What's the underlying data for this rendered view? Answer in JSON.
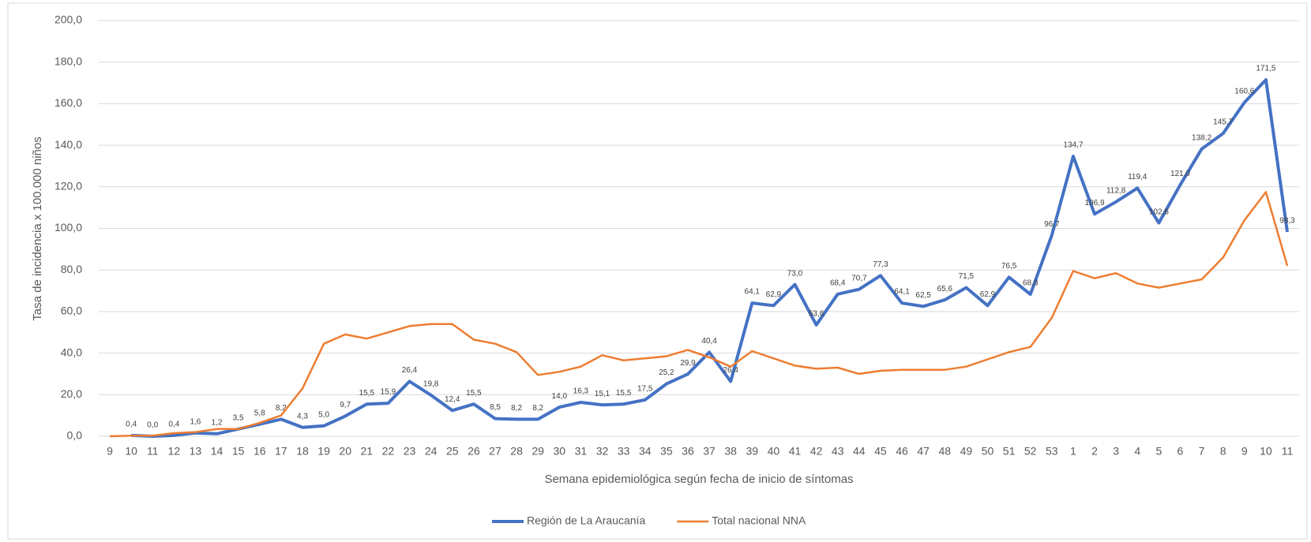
{
  "chart_data": {
    "type": "line",
    "x_label": "Semana epidemiológica según fecha de inicio de síntomas",
    "y_label": "Tasa de incidencia x 100.000 niños",
    "categories": [
      9,
      10,
      11,
      12,
      13,
      14,
      15,
      16,
      17,
      18,
      19,
      20,
      21,
      22,
      23,
      24,
      25,
      26,
      27,
      28,
      29,
      30,
      31,
      32,
      33,
      34,
      35,
      36,
      37,
      38,
      39,
      40,
      41,
      42,
      43,
      44,
      45,
      46,
      47,
      48,
      49,
      50,
      51,
      52,
      53,
      1,
      2,
      3,
      4,
      5,
      6,
      7,
      8,
      9,
      10,
      11
    ],
    "ylim": [
      0,
      200
    ],
    "yticks": [
      {
        "value": 0,
        "label": "0,0"
      },
      {
        "value": 20,
        "label": "20,0"
      },
      {
        "value": 40,
        "label": "40,0"
      },
      {
        "value": 60,
        "label": "60,0"
      },
      {
        "value": 80,
        "label": "80,0"
      },
      {
        "value": 100,
        "label": "100,0"
      },
      {
        "value": 120,
        "label": "120,0"
      },
      {
        "value": 140,
        "label": "140,0"
      },
      {
        "value": 160,
        "label": "160,0"
      },
      {
        "value": 180,
        "label": "180,0"
      },
      {
        "value": 200,
        "label": "200,0"
      }
    ],
    "grid": true,
    "legend": "bottom",
    "series": [
      {
        "name": "Región de La Araucanía",
        "color": "#4472c4",
        "values": [
          null,
          0.4,
          0.0,
          0.4,
          1.6,
          1.2,
          3.5,
          5.8,
          8.2,
          4.3,
          5.0,
          9.7,
          15.5,
          15.9,
          26.4,
          19.8,
          12.4,
          15.5,
          8.5,
          8.2,
          8.2,
          14.0,
          16.3,
          15.1,
          15.5,
          17.5,
          25.2,
          29.9,
          40.4,
          26.4,
          64.1,
          62.9,
          73.0,
          53.6,
          68.4,
          70.7,
          77.3,
          64.1,
          62.5,
          65.6,
          71.5,
          62.9,
          76.5,
          68.3,
          96.7,
          134.7,
          106.9,
          112.8,
          119.4,
          102.6,
          121.0,
          138.2,
          145.7,
          160.6,
          171.5,
          98.3
        ],
        "value_labels": [
          null,
          "0,4",
          "0,0",
          "0,4",
          "1,6",
          "1,2",
          "3,5",
          "5,8",
          "8,2",
          "4,3",
          "5,0",
          "9,7",
          "15,5",
          "15,9",
          "26,4",
          "19,8",
          "12,4",
          "15,5",
          "8,5",
          "8,2",
          "8,2",
          "14,0",
          "16,3",
          "15,1",
          "15,5",
          "17,5",
          "25,2",
          "29,9",
          "40,4",
          "26,4",
          "64,1",
          "62,9",
          "73,0",
          "53,6",
          "68,4",
          "70,7",
          "77,3",
          "64,1",
          "62,5",
          "65,6",
          "71,5",
          "62,9",
          "76,5",
          "68,3",
          "96,7",
          "134,7",
          "106,9",
          "112,8",
          "119,4",
          "102,6",
          "121,0",
          "138,2",
          "145,7",
          "160,6",
          "171,5",
          "98,3"
        ]
      },
      {
        "name": "Total nacional NNA",
        "color": "#ed7d31",
        "values": [
          0,
          0.3,
          0.3,
          1.5,
          2,
          3.5,
          3.5,
          6.5,
          10,
          23,
          44.5,
          49,
          47,
          50,
          53,
          54,
          54,
          46.5,
          44.5,
          40.5,
          29.5,
          31,
          33.5,
          39,
          36.5,
          37.5,
          38.5,
          41.5,
          38,
          33.5,
          41,
          37.5,
          34,
          32.5,
          33,
          30,
          31.5,
          32,
          32,
          32,
          33.5,
          37,
          40.5,
          43,
          57,
          79.5,
          76,
          78.5,
          73.5,
          71.5,
          73.5,
          75.5,
          86,
          104,
          117.5,
          82
        ]
      }
    ]
  }
}
